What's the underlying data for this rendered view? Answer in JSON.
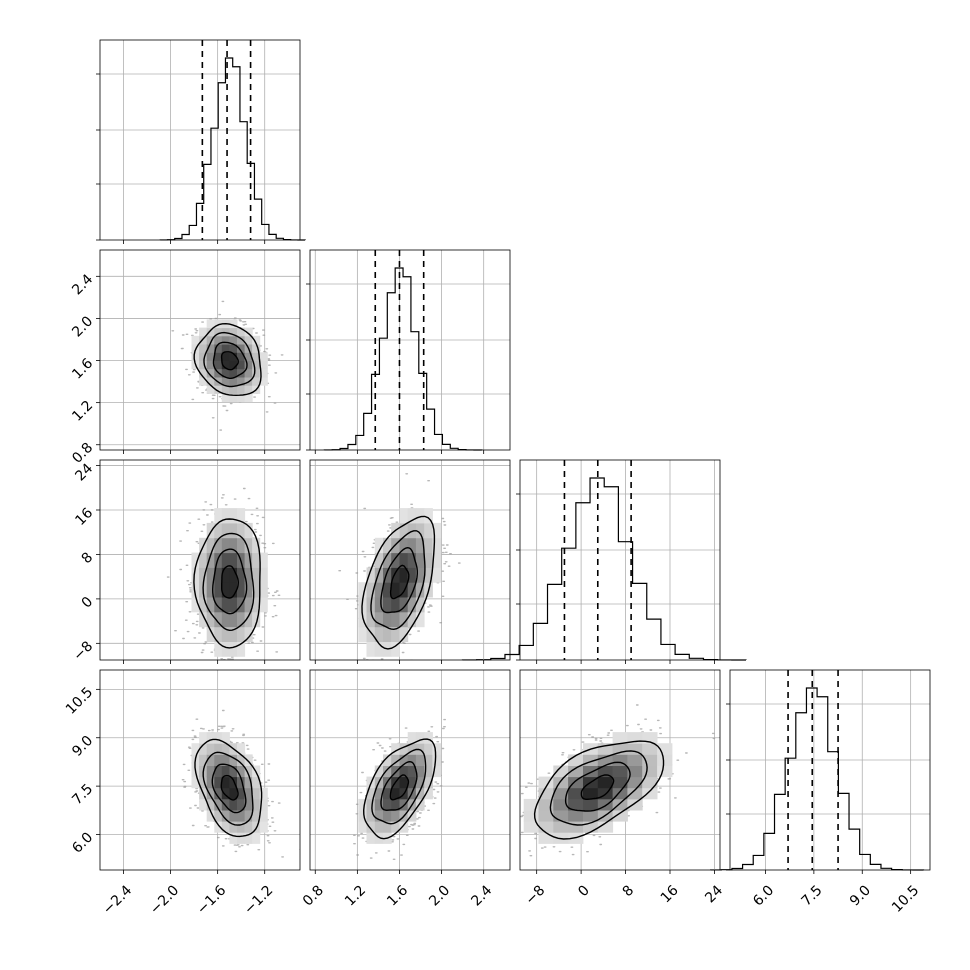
{
  "chart_data": {
    "type": "corner",
    "n_params": 4,
    "params": [
      {
        "ticks": [
          -2.4,
          -2.0,
          -1.6,
          -1.2
        ],
        "tick_labels": [
          "−2.4",
          "−2.0",
          "−1.6",
          "−1.2"
        ],
        "range": [
          -2.6,
          -0.9
        ],
        "mean": -1.5,
        "sigma": 0.14,
        "quantiles": [
          -1.73,
          -1.52,
          -1.32
        ]
      },
      {
        "ticks": [
          0.8,
          1.2,
          1.6,
          2.0,
          2.4
        ],
        "tick_labels": [
          "0.8",
          "1.2",
          "1.6",
          "2.0",
          "2.4"
        ],
        "range": [
          0.75,
          2.65
        ],
        "mean": 1.6,
        "sigma": 0.17,
        "quantiles": [
          1.37,
          1.6,
          1.83
        ]
      },
      {
        "ticks": [
          -8,
          0,
          8,
          16,
          24
        ],
        "tick_labels": [
          "−8",
          "0",
          "8",
          "16",
          "24"
        ],
        "range": [
          -11,
          25
        ],
        "mean": 3,
        "sigma": 5.8,
        "quantiles": [
          -3.0,
          3.0,
          9.0
        ]
      },
      {
        "ticks": [
          6.0,
          7.5,
          9.0,
          10.5
        ],
        "tick_labels": [
          "6.0",
          "7.5",
          "9.0",
          "10.5"
        ],
        "range": [
          4.9,
          11.1
        ],
        "mean": 7.45,
        "sigma": 0.75,
        "quantiles": [
          6.7,
          7.45,
          8.25
        ]
      }
    ],
    "correlations": [
      [
        1.0,
        -0.15,
        0.0,
        -0.4
      ],
      [
        -0.15,
        1.0,
        0.45,
        0.55
      ],
      [
        0.0,
        0.45,
        1.0,
        0.55
      ],
      [
        -0.4,
        0.55,
        0.55,
        1.0
      ]
    ],
    "diag_hist_bins": 20,
    "contour_sigma_levels": [
      0.5,
      1.0,
      1.5,
      2.0
    ],
    "line_color": "#000000",
    "scatter_color": "#999999",
    "grid": true,
    "tick_label_rotation_deg": 45
  }
}
